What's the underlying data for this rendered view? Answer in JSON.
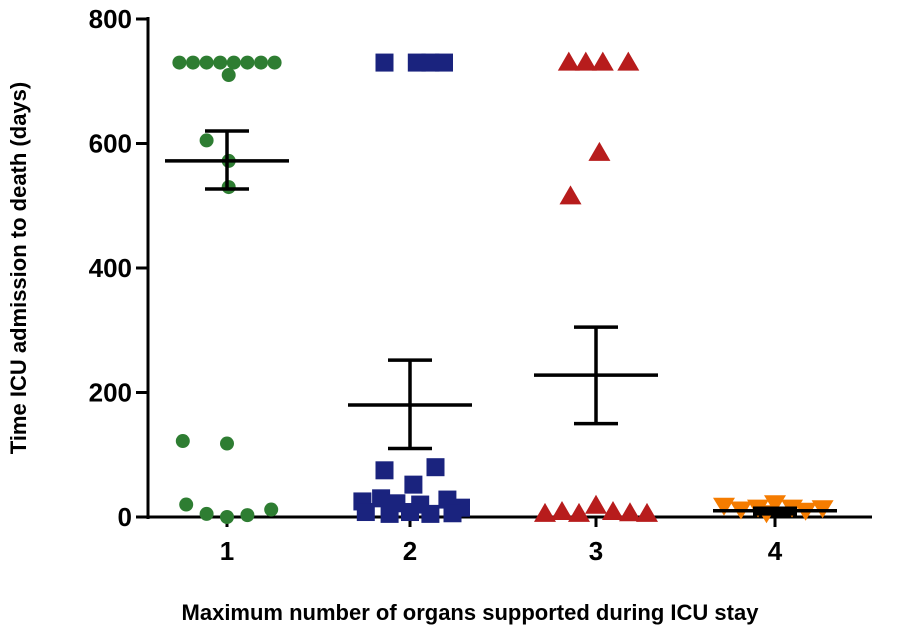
{
  "chart_data": {
    "type": "scatter",
    "xlabel": "Maximum number of organs supported during ICU stay",
    "ylabel": "Time ICU admission to death (days)",
    "categories": [
      "1",
      "2",
      "3",
      "4"
    ],
    "ylim": [
      0,
      800
    ],
    "yticks": [
      0,
      200,
      400,
      600,
      800
    ],
    "grid": false,
    "series": [
      {
        "category": "1",
        "marker": "circle",
        "color": "#2e7d32",
        "mean": 572,
        "err_low": 527,
        "err_high": 620,
        "points": [
          {
            "x": -0.28,
            "y": 730
          },
          {
            "x": -0.2,
            "y": 730
          },
          {
            "x": -0.12,
            "y": 730
          },
          {
            "x": -0.04,
            "y": 730
          },
          {
            "x": 0.04,
            "y": 730
          },
          {
            "x": 0.12,
            "y": 730
          },
          {
            "x": 0.2,
            "y": 730
          },
          {
            "x": 0.28,
            "y": 730
          },
          {
            "x": 0.01,
            "y": 710
          },
          {
            "x": -0.12,
            "y": 605
          },
          {
            "x": 0.01,
            "y": 572
          },
          {
            "x": 0.01,
            "y": 530
          },
          {
            "x": -0.26,
            "y": 122
          },
          {
            "x": 0.0,
            "y": 118
          },
          {
            "x": -0.24,
            "y": 20
          },
          {
            "x": -0.12,
            "y": 5
          },
          {
            "x": 0.0,
            "y": 0
          },
          {
            "x": 0.12,
            "y": 3
          },
          {
            "x": 0.26,
            "y": 12
          }
        ]
      },
      {
        "category": "2",
        "marker": "square",
        "color": "#1a237e",
        "mean": 180,
        "err_low": 110,
        "err_high": 252,
        "points": [
          {
            "x": -0.15,
            "y": 730
          },
          {
            "x": 0.04,
            "y": 730
          },
          {
            "x": 0.12,
            "y": 730
          },
          {
            "x": 0.2,
            "y": 730
          },
          {
            "x": -0.15,
            "y": 75
          },
          {
            "x": 0.15,
            "y": 80
          },
          {
            "x": 0.02,
            "y": 52
          },
          {
            "x": -0.28,
            "y": 25
          },
          {
            "x": -0.17,
            "y": 30
          },
          {
            "x": -0.08,
            "y": 22
          },
          {
            "x": 0.06,
            "y": 20
          },
          {
            "x": 0.22,
            "y": 28
          },
          {
            "x": 0.3,
            "y": 15
          },
          {
            "x": -0.26,
            "y": 8
          },
          {
            "x": -0.12,
            "y": 5
          },
          {
            "x": 0.0,
            "y": 8
          },
          {
            "x": 0.12,
            "y": 5
          },
          {
            "x": 0.25,
            "y": 6
          }
        ]
      },
      {
        "category": "3",
        "marker": "triangle-up",
        "color": "#b71c1c",
        "mean": 228,
        "err_low": 150,
        "err_high": 305,
        "points": [
          {
            "x": -0.16,
            "y": 730
          },
          {
            "x": -0.06,
            "y": 730
          },
          {
            "x": 0.04,
            "y": 730
          },
          {
            "x": 0.19,
            "y": 730
          },
          {
            "x": 0.02,
            "y": 585
          },
          {
            "x": -0.15,
            "y": 515
          },
          {
            "x": -0.3,
            "y": 5
          },
          {
            "x": -0.2,
            "y": 8
          },
          {
            "x": -0.1,
            "y": 5
          },
          {
            "x": 0.0,
            "y": 18
          },
          {
            "x": 0.1,
            "y": 8
          },
          {
            "x": 0.2,
            "y": 6
          },
          {
            "x": 0.3,
            "y": 5
          }
        ]
      },
      {
        "category": "4",
        "marker": "triangle-down",
        "color": "#f57c00",
        "mean": 10,
        "err_low": 5,
        "err_high": 14,
        "points": [
          {
            "x": -0.3,
            "y": 18
          },
          {
            "x": -0.2,
            "y": 12
          },
          {
            "x": -0.1,
            "y": 15
          },
          {
            "x": 0.0,
            "y": 22
          },
          {
            "x": 0.1,
            "y": 15
          },
          {
            "x": 0.18,
            "y": 10
          },
          {
            "x": 0.28,
            "y": 14
          },
          {
            "x": -0.05,
            "y": 6
          }
        ]
      }
    ]
  }
}
